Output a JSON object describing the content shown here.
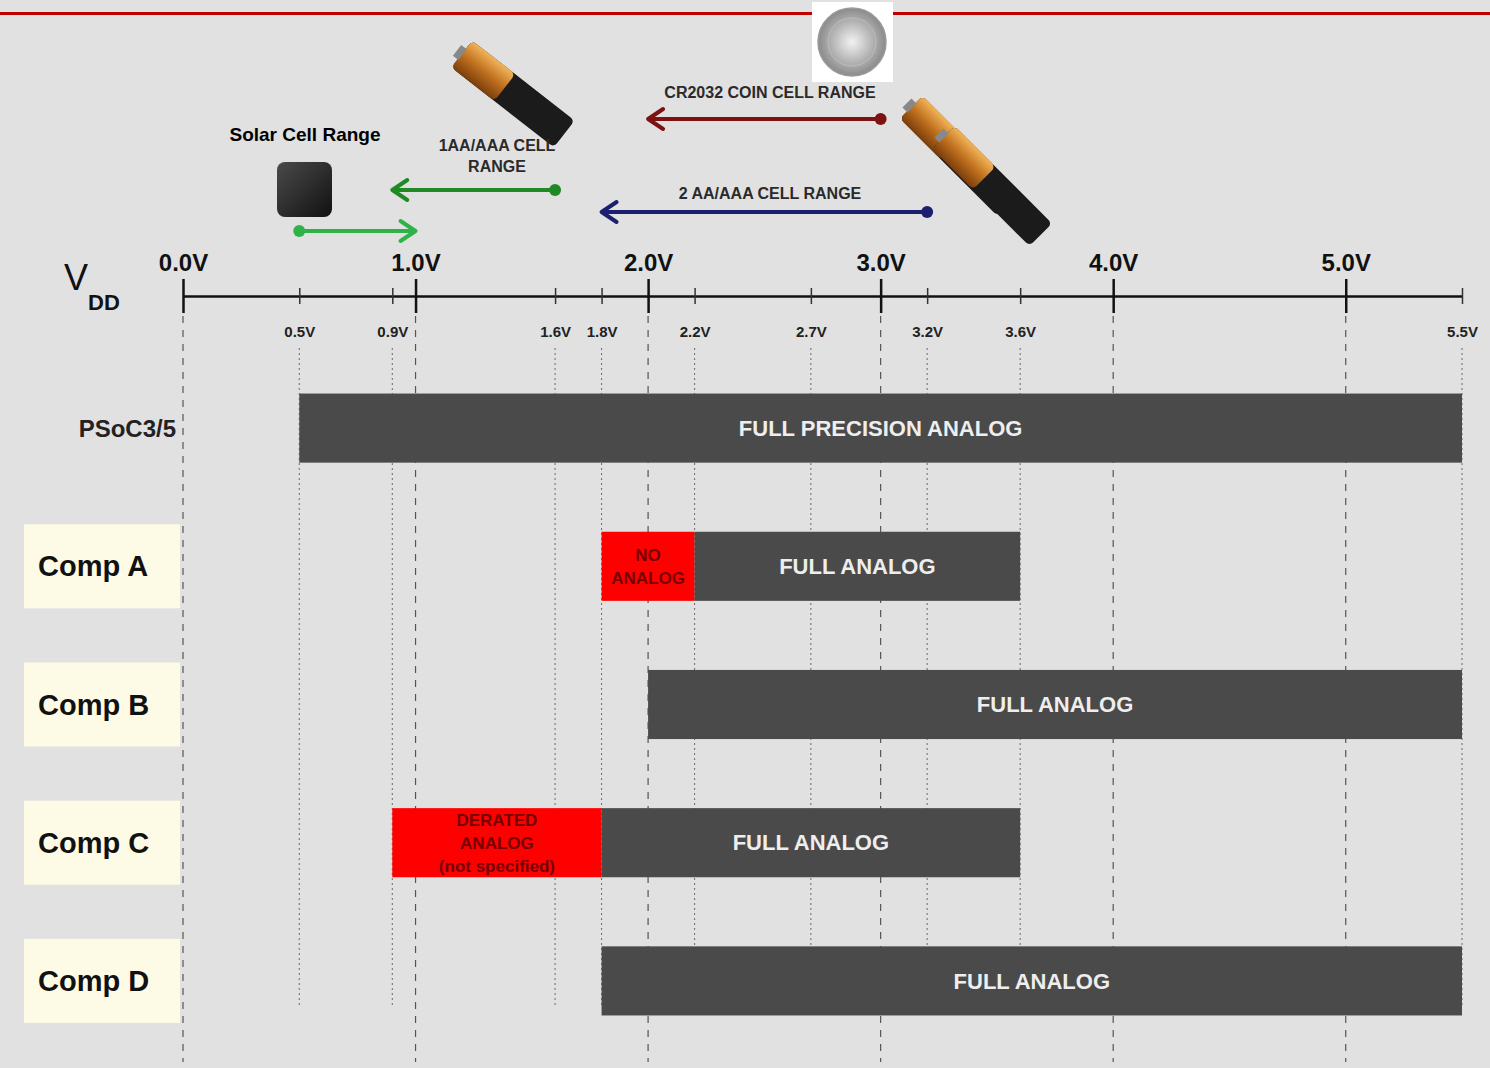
{
  "chart_data": {
    "type": "range_bar",
    "orientation": "horizontal",
    "x_label": "VDD",
    "xlim": [
      0,
      5.5
    ],
    "xticks": [
      {
        "value": 0,
        "label": "0.0V"
      },
      {
        "value": 1,
        "label": "1.0V"
      },
      {
        "value": 2,
        "label": "2.0V"
      },
      {
        "value": 3,
        "label": "3.0V"
      },
      {
        "value": 4,
        "label": "4.0V"
      },
      {
        "value": 5,
        "label": "5.0V"
      }
    ],
    "xticks_minor": [
      {
        "value": 0.5,
        "label": "0.5V"
      },
      {
        "value": 0.9,
        "label": "0.9V"
      },
      {
        "value": 1.6,
        "label": "1.6V"
      },
      {
        "value": 1.8,
        "label": "1.8V"
      },
      {
        "value": 2.2,
        "label": "2.2V"
      },
      {
        "value": 2.7,
        "label": "2.7V"
      },
      {
        "value": 3.2,
        "label": "3.2V"
      },
      {
        "value": 3.6,
        "label": "3.6V"
      },
      {
        "value": 5.5,
        "label": "5.5V"
      }
    ],
    "grid": true,
    "categories": [
      "PSoC3/5",
      "Comp A",
      "Comp B",
      "Comp C",
      "Comp D"
    ],
    "segments": [
      [
        {
          "start": 0.5,
          "end": 5.5,
          "label": "FULL PRECISION ANALOG",
          "color": "#4a4a4a"
        }
      ],
      [
        {
          "start": 1.8,
          "end": 2.2,
          "label": [
            "NO",
            "ANALOG"
          ],
          "color": "#ff0000"
        },
        {
          "start": 2.2,
          "end": 3.6,
          "label": "FULL ANALOG",
          "color": "#4a4a4a"
        }
      ],
      [
        {
          "start": 2.0,
          "end": 5.5,
          "label": "FULL ANALOG",
          "color": "#4a4a4a"
        }
      ],
      [
        {
          "start": 0.9,
          "end": 1.8,
          "label": [
            "DERATED",
            "ANALOG",
            "(not specified)"
          ],
          "color": "#ff0000"
        },
        {
          "start": 1.8,
          "end": 3.6,
          "label": "FULL ANALOG",
          "color": "#4a4a4a"
        }
      ],
      [
        {
          "start": 1.8,
          "end": 5.5,
          "label": "FULL ANALOG",
          "color": "#4a4a4a"
        }
      ]
    ],
    "sources": [
      {
        "name": "Solar Cell Range",
        "start": 0.5,
        "end": 1.0,
        "color": "#2fb24a"
      },
      {
        "name": [
          "1AA/AAA CELL",
          "RANGE"
        ],
        "start": 1.6,
        "end": 0.9,
        "color": "#1f8a24"
      },
      {
        "name": "2 AA/AAA CELL RANGE",
        "start": 3.2,
        "end": 1.8,
        "color": "#1b1f70"
      },
      {
        "name": "CR2032 COIN CELL RANGE",
        "start": 3.0,
        "end": 2.0,
        "color": "#7c1212"
      }
    ]
  }
}
